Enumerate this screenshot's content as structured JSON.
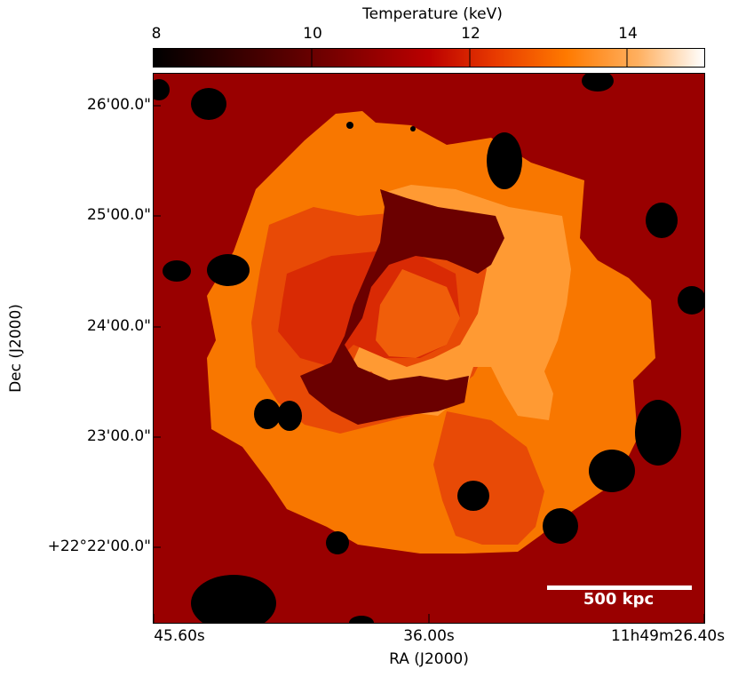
{
  "colorbar": {
    "title": "Temperature (keV)",
    "ticks": [
      "8",
      "10",
      "12",
      "14"
    ],
    "range": [
      8,
      15
    ],
    "colormap": "gist_heat"
  },
  "axes": {
    "xlabel": "RA (J2000)",
    "ylabel": "Dec (J2000)",
    "xticks": [
      "45.60s",
      "36.00s",
      "11h49m26.40s"
    ],
    "yticks": [
      "26'00.0\"",
      "25'00.0\"",
      "24'00.0\"",
      "24'00.0\"",
      "23'00.0\"",
      "+22°22'00.0\""
    ]
  },
  "scalebar": {
    "label": "500 kpc",
    "color": "#ffffff"
  },
  "colors": {
    "background": "#990000",
    "outer_shell": "#f87700",
    "bright_arc": "#ff9a33",
    "inner_orange": "#e84a06",
    "core": "#d92a04",
    "core_center": "#f05e0a",
    "dark_ridge": "#6b0000",
    "masks": "#000000"
  }
}
